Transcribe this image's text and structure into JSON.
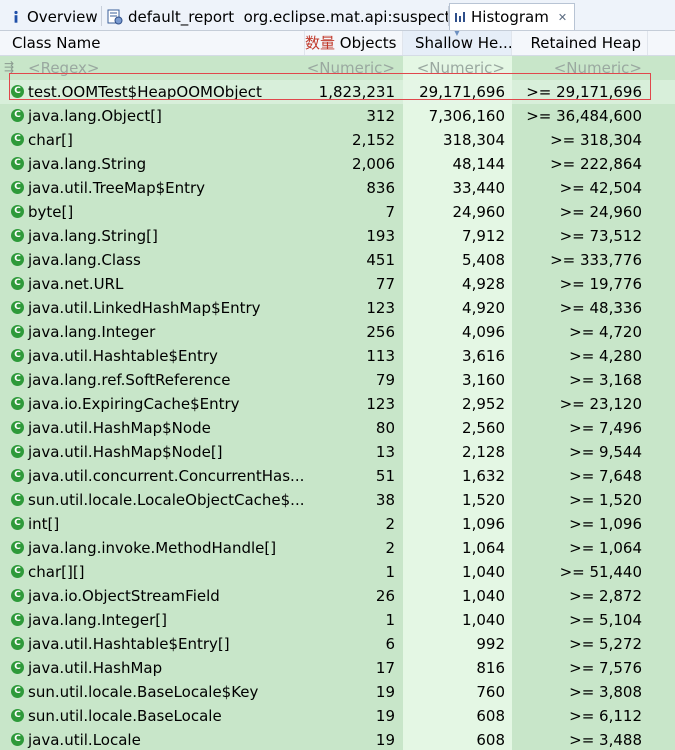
{
  "tabs": [
    {
      "label": "Overview",
      "icon": "info-icon",
      "active": false
    },
    {
      "label": "default_report  org.eclipse.mat.api:suspects",
      "icon": "report-icon",
      "active": false
    },
    {
      "label": "Histogram",
      "icon": "histogram-icon",
      "active": true,
      "close": "✕"
    }
  ],
  "columns": {
    "class_name": "Class Name",
    "objects_prefix": "数量",
    "objects": "Objects",
    "shallow": "Shallow He...",
    "retained": "Retained Heap"
  },
  "filter": {
    "regex": "<Regex>",
    "numeric_objects": "<Numeric>",
    "numeric_shallow": "<Numeric>",
    "numeric_retained": "<Numeric>"
  },
  "rows": [
    {
      "name": "test.OOMTest$HeapOOMObject",
      "objects": "1,823,231",
      "shallow": "29,171,696",
      "retained": ">= 29,171,696"
    },
    {
      "name": "java.lang.Object[]",
      "objects": "312",
      "shallow": "7,306,160",
      "retained": ">= 36,484,600"
    },
    {
      "name": "char[]",
      "objects": "2,152",
      "shallow": "318,304",
      "retained": ">= 318,304"
    },
    {
      "name": "java.lang.String",
      "objects": "2,006",
      "shallow": "48,144",
      "retained": ">= 222,864"
    },
    {
      "name": "java.util.TreeMap$Entry",
      "objects": "836",
      "shallow": "33,440",
      "retained": ">= 42,504"
    },
    {
      "name": "byte[]",
      "objects": "7",
      "shallow": "24,960",
      "retained": ">= 24,960"
    },
    {
      "name": "java.lang.String[]",
      "objects": "193",
      "shallow": "7,912",
      "retained": ">= 73,512"
    },
    {
      "name": "java.lang.Class",
      "objects": "451",
      "shallow": "5,408",
      "retained": ">= 333,776"
    },
    {
      "name": "java.net.URL",
      "objects": "77",
      "shallow": "4,928",
      "retained": ">= 19,776"
    },
    {
      "name": "java.util.LinkedHashMap$Entry",
      "objects": "123",
      "shallow": "4,920",
      "retained": ">= 48,336"
    },
    {
      "name": "java.lang.Integer",
      "objects": "256",
      "shallow": "4,096",
      "retained": ">= 4,720"
    },
    {
      "name": "java.util.Hashtable$Entry",
      "objects": "113",
      "shallow": "3,616",
      "retained": ">= 4,280"
    },
    {
      "name": "java.lang.ref.SoftReference",
      "objects": "79",
      "shallow": "3,160",
      "retained": ">= 3,168"
    },
    {
      "name": "java.io.ExpiringCache$Entry",
      "objects": "123",
      "shallow": "2,952",
      "retained": ">= 23,120"
    },
    {
      "name": "java.util.HashMap$Node",
      "objects": "80",
      "shallow": "2,560",
      "retained": ">= 7,496"
    },
    {
      "name": "java.util.HashMap$Node[]",
      "objects": "13",
      "shallow": "2,128",
      "retained": ">= 9,544"
    },
    {
      "name": "java.util.concurrent.ConcurrentHas...",
      "objects": "51",
      "shallow": "1,632",
      "retained": ">= 7,648"
    },
    {
      "name": "sun.util.locale.LocaleObjectCache$...",
      "objects": "38",
      "shallow": "1,520",
      "retained": ">= 1,520"
    },
    {
      "name": "int[]",
      "objects": "2",
      "shallow": "1,096",
      "retained": ">= 1,096"
    },
    {
      "name": "java.lang.invoke.MethodHandle[]",
      "objects": "2",
      "shallow": "1,064",
      "retained": ">= 1,064"
    },
    {
      "name": "char[][]",
      "objects": "1",
      "shallow": "1,040",
      "retained": ">= 51,440"
    },
    {
      "name": "java.io.ObjectStreamField",
      "objects": "26",
      "shallow": "1,040",
      "retained": ">= 2,872"
    },
    {
      "name": "java.lang.Integer[]",
      "objects": "1",
      "shallow": "1,040",
      "retained": ">= 5,104"
    },
    {
      "name": "java.util.Hashtable$Entry[]",
      "objects": "6",
      "shallow": "992",
      "retained": ">= 5,272"
    },
    {
      "name": "java.util.HashMap",
      "objects": "17",
      "shallow": "816",
      "retained": ">= 7,576"
    },
    {
      "name": "sun.util.locale.BaseLocale$Key",
      "objects": "19",
      "shallow": "760",
      "retained": ">= 3,808"
    },
    {
      "name": "sun.util.locale.BaseLocale",
      "objects": "19",
      "shallow": "608",
      "retained": ">= 6,112"
    },
    {
      "name": "java.util.Locale",
      "objects": "19",
      "shallow": "608",
      "retained": ">= 3,488"
    }
  ],
  "class_icon_glyph": "C",
  "colors": {
    "row_bg": "#c8e6c9",
    "highlight_border": "#e0474c",
    "class_icon": "#2e9a3a"
  }
}
